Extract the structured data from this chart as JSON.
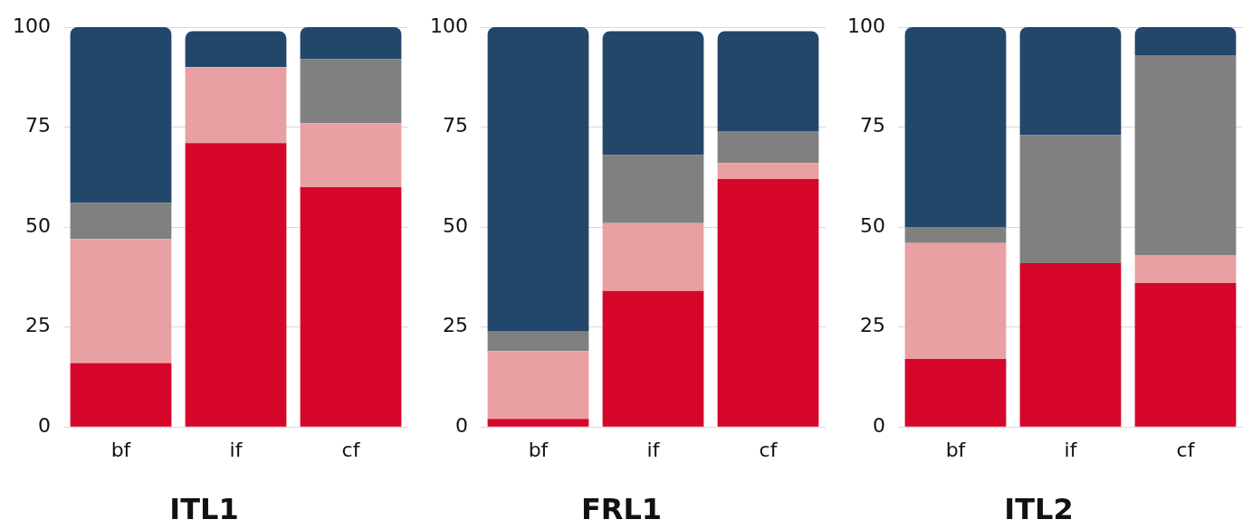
{
  "chart_data": [
    {
      "type": "bar",
      "title": "ITL1",
      "categories": [
        "bf",
        "if",
        "cf"
      ],
      "stacked": true,
      "ylim": [
        0,
        100
      ],
      "yticks": [
        0,
        25,
        50,
        75,
        100
      ],
      "grid": "y",
      "legend": false,
      "series": [
        {
          "color": "#d50629",
          "values": [
            16,
            71,
            60
          ]
        },
        {
          "color": "#e8a0a3",
          "values": [
            31,
            19,
            16
          ]
        },
        {
          "color": "#808080",
          "values": [
            9,
            0,
            16
          ]
        },
        {
          "color": "#23476b",
          "values": [
            44,
            9,
            8
          ]
        }
      ]
    },
    {
      "type": "bar",
      "title": "FRL1",
      "categories": [
        "bf",
        "if",
        "cf"
      ],
      "stacked": true,
      "ylim": [
        0,
        100
      ],
      "yticks": [
        0,
        25,
        50,
        75,
        100
      ],
      "grid": "y",
      "legend": false,
      "series": [
        {
          "color": "#d50629",
          "values": [
            2,
            34,
            62
          ]
        },
        {
          "color": "#e8a0a3",
          "values": [
            17,
            17,
            4
          ]
        },
        {
          "color": "#808080",
          "values": [
            5,
            17,
            8
          ]
        },
        {
          "color": "#23476b",
          "values": [
            76,
            31,
            25
          ]
        }
      ]
    },
    {
      "type": "bar",
      "title": "ITL2",
      "categories": [
        "bf",
        "if",
        "cf"
      ],
      "stacked": true,
      "ylim": [
        0,
        100
      ],
      "yticks": [
        0,
        25,
        50,
        75,
        100
      ],
      "grid": "y",
      "legend": false,
      "series": [
        {
          "color": "#d50629",
          "values": [
            17,
            41,
            36
          ]
        },
        {
          "color": "#e8a0a3",
          "values": [
            29,
            0,
            7
          ]
        },
        {
          "color": "#808080",
          "values": [
            4,
            32,
            50
          ]
        },
        {
          "color": "#23476b",
          "values": [
            50,
            27,
            7
          ]
        }
      ]
    }
  ]
}
